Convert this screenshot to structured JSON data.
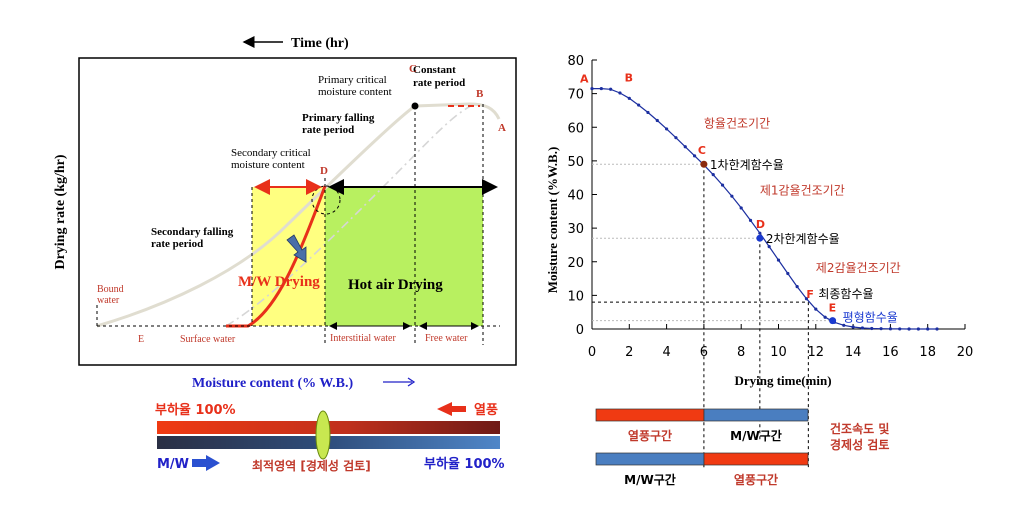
{
  "left": {
    "time_label": "Time (hr)",
    "ylabel": "Drying rate (kg/hr)",
    "xlabel": "Moisture content (% W.B.)",
    "annotations": {
      "constant_rate_1": "Constant",
      "constant_rate_2": "rate period",
      "primary_critical_1": "Primary critical",
      "primary_critical_2": "moisture content",
      "primary_falling_1": "Primary  falling",
      "primary_falling_2": "rate period",
      "secondary_critical_1": "Secondary critical",
      "secondary_critical_2": "moisture content",
      "secondary_falling_1": "Secondary  falling",
      "secondary_falling_2": "rate period",
      "bound_1": "Bound",
      "bound_2": "water",
      "surface_water": "Surface water",
      "interstitial_water": "Interstitial water",
      "free_water": "Free  water",
      "mw_drying": "M/W Drying",
      "hot_air_drying": "Hot air Drying"
    },
    "point_letters": {
      "A": "A",
      "B": "B",
      "C": "C",
      "D": "D",
      "E": "E"
    }
  },
  "bars_left": {
    "load_100": "부하율 100%",
    "hot_air": "열풍",
    "mw": "M/W",
    "optimal": "최적영역 [경제성 검토]",
    "load_100_right": "부하율 100%"
  },
  "chart_data": {
    "type": "line",
    "xlabel": "Drying time(min)",
    "ylabel": "Moisture content  (%W.B.)",
    "xlim": [
      0,
      20
    ],
    "ylim": [
      0,
      80
    ],
    "xticks": [
      0,
      2,
      4,
      6,
      8,
      10,
      12,
      14,
      16,
      18,
      20
    ],
    "yticks": [
      0,
      10,
      20,
      30,
      40,
      50,
      60,
      70,
      80
    ],
    "series": [
      {
        "x": [
          0,
          0.5,
          1,
          1.5,
          2,
          2.5,
          3,
          3.5,
          4,
          4.5,
          5,
          5.5,
          6,
          6.5,
          7,
          7.5,
          8,
          8.5,
          9,
          9.5,
          10,
          10.5,
          11,
          11.5,
          12,
          12.5,
          13,
          13.5,
          14,
          14.5,
          15,
          15.5,
          16,
          16.5,
          17,
          17.5,
          18,
          18.5
        ],
        "y": [
          71.5,
          71.5,
          71.3,
          70.2,
          68.6,
          66.6,
          64.4,
          62.0,
          59.5,
          56.9,
          54.2,
          51.5,
          48.8,
          45.9,
          42.8,
          39.5,
          36.0,
          32.3,
          28.5,
          24.5,
          20.5,
          16.5,
          12.6,
          9.0,
          5.9,
          3.5,
          2.0,
          1.1,
          0.6,
          0.3,
          0.15,
          0.1,
          0.05,
          0.02,
          0.01,
          0,
          0,
          0
        ]
      }
    ],
    "labeled_points": [
      {
        "letter": "A",
        "x": 0,
        "y": 71.5,
        "text": ""
      },
      {
        "letter": "B",
        "x": 1,
        "y": 71.3,
        "text": ""
      },
      {
        "letter": "C",
        "x": 6,
        "y": 49,
        "text": "1차한계함수율"
      },
      {
        "letter": "D",
        "x": 9,
        "y": 27,
        "text": "2차한계함수율"
      },
      {
        "letter": "F",
        "x": 11.6,
        "y": 8,
        "text": "최종함수율"
      },
      {
        "letter": "E",
        "x": 12.9,
        "y": 2.5,
        "text": "평형함수율"
      }
    ],
    "period_labels": [
      "항율건조기간",
      "제1감율건조기간",
      "제2감율건조기간"
    ]
  },
  "bars_right": {
    "hot_air_section": "열풍구간",
    "mw_section": "M/W구간",
    "mw_section_2": "M/W구간",
    "hot_air_section_2": "열풍구간",
    "note_1": "건조속도 및",
    "note_2": "경제성 검토"
  },
  "colors": {
    "accent_red": "#e8301a",
    "accent_blue": "#4a7ec0",
    "curve_blue": "#1c2fa0",
    "yellow": "#ffff80",
    "green": "#b8f060",
    "label_red": "#c0392b"
  }
}
